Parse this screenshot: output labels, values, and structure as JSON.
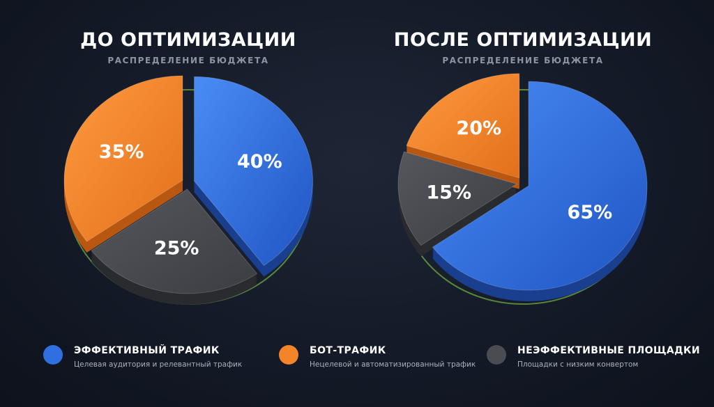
{
  "charts": [
    {
      "title": "ДО ОПТИМИЗАЦИИ",
      "subtitle": "РАСПРЕДЕЛЕНИЕ БЮДЖЕТА",
      "labels": [
        "40%",
        "25%",
        "35%"
      ]
    },
    {
      "title": "ПОСЛЕ ОПТИМИЗАЦИИ",
      "subtitle": "РАСПРЕДЕЛЕНИЕ БЮДЖЕТА",
      "labels": [
        "65%",
        "15%",
        "20%"
      ]
    }
  ],
  "legend": [
    {
      "title": "ЭФФЕКТИВНЫЙ ТРАФИК",
      "desc": "Целевая аудитория и релевантный трафик",
      "color": "#2f6fe0"
    },
    {
      "title": "БОТ-ТРАФИК",
      "desc": "Нецелевой и автоматизированный трафик",
      "color": "#f3842a"
    },
    {
      "title": "НЕЭФФЕКТИВНЫЕ ПЛОЩАДКИ",
      "desc": "Площадки с низким конвертом",
      "color": "#4a4c52"
    }
  ],
  "chart_data": [
    {
      "type": "pie",
      "title": "ДО ОПТИМИЗАЦИИ",
      "subtitle": "РАСПРЕДЕЛЕНИЕ БЮДЖЕТА",
      "categories": [
        "ЭФФЕКТИВНЫЙ ТРАФИК",
        "НЕЭФФЕКТИВНЫЕ ПЛОЩАДКИ",
        "БОТ-ТРАФИК"
      ],
      "values": [
        40,
        25,
        35
      ],
      "colors": [
        "#2f6fe0",
        "#4a4c52",
        "#f3842a"
      ]
    },
    {
      "type": "pie",
      "title": "ПОСЛЕ ОПТИМИЗАЦИИ",
      "subtitle": "РАСПРЕДЕЛЕНИЕ БЮДЖЕТА",
      "categories": [
        "ЭФФЕКТИВНЫЙ ТРАФИК",
        "НЕЭФФЕКТИВНЫЕ ПЛОЩАДКИ",
        "БОТ-ТРАФИК"
      ],
      "values": [
        65,
        15,
        20
      ],
      "colors": [
        "#2f6fe0",
        "#4a4c52",
        "#f3842a"
      ]
    }
  ]
}
